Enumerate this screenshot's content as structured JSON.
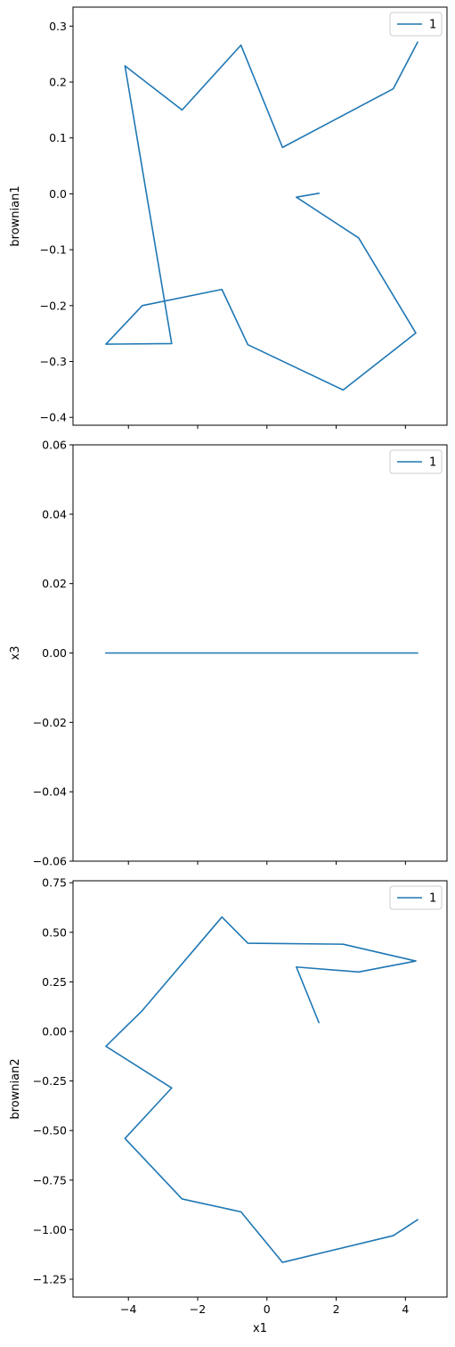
{
  "chart_data": [
    {
      "type": "line",
      "ylabel": "brownian1",
      "xlabel": "",
      "xlim": [
        -5.6,
        5.2
      ],
      "ylim": [
        -0.414,
        0.334
      ],
      "yticks": [
        -0.4,
        -0.3,
        -0.2,
        -0.1,
        0.0,
        0.1,
        0.2,
        0.3
      ],
      "ytick_labels": [
        "−0.4",
        "−0.3",
        "−0.2",
        "−0.1",
        "0.0",
        "0.1",
        "0.2",
        "0.3"
      ],
      "xticks": [
        -4,
        -2,
        0,
        2,
        4
      ],
      "xtick_labels": [],
      "legend_position": "upper-right",
      "series": [
        {
          "name": "1",
          "color": "#1f77b4",
          "x": [
            1.5,
            0.85,
            2.65,
            4.3,
            2.2,
            -0.55,
            -1.3,
            -3.6,
            -4.65,
            -2.75,
            -4.1,
            -2.45,
            -0.75,
            0.45,
            3.65,
            4.35
          ],
          "y": [
            0.001,
            -0.006,
            -0.079,
            -0.249,
            -0.351,
            -0.27,
            -0.171,
            -0.2,
            -0.269,
            -0.268,
            0.229,
            0.15,
            0.266,
            0.083,
            0.188,
            0.271
          ]
        }
      ]
    },
    {
      "type": "line",
      "ylabel": "x3",
      "xlabel": "",
      "xlim": [
        -5.6,
        5.2
      ],
      "ylim": [
        -0.06,
        0.06
      ],
      "yticks": [
        -0.06,
        -0.04,
        -0.02,
        0.0,
        0.02,
        0.04,
        0.06
      ],
      "ytick_labels": [
        "−0.06",
        "−0.04",
        "−0.02",
        "0.00",
        "0.02",
        "0.04",
        "0.06"
      ],
      "xticks": [
        -4,
        -2,
        0,
        2,
        4
      ],
      "xtick_labels": [],
      "legend_position": "upper-right",
      "series": [
        {
          "name": "1",
          "color": "#1f77b4",
          "x": [
            -4.65,
            4.35
          ],
          "y": [
            0.0,
            0.0
          ]
        }
      ]
    },
    {
      "type": "line",
      "ylabel": "brownian2",
      "xlabel": "x1",
      "xlim": [
        -5.6,
        5.2
      ],
      "ylim": [
        -1.34,
        0.76
      ],
      "yticks": [
        -1.25,
        -1.0,
        -0.75,
        -0.5,
        -0.25,
        0.0,
        0.25,
        0.5,
        0.75
      ],
      "ytick_labels": [
        "−1.25",
        "−1.00",
        "−0.75",
        "−0.50",
        "−0.25",
        "0.00",
        "0.25",
        "0.50",
        "0.75"
      ],
      "xticks": [
        -4,
        -2,
        0,
        2,
        4
      ],
      "xtick_labels": [
        "−4",
        "−2",
        "0",
        "2",
        "4"
      ],
      "legend_position": "upper-right",
      "series": [
        {
          "name": "1",
          "color": "#1f77b4",
          "x": [
            1.5,
            0.85,
            2.65,
            4.3,
            2.2,
            -0.55,
            -1.3,
            -3.6,
            -4.65,
            -2.75,
            -4.1,
            -2.45,
            -0.75,
            0.45,
            3.65,
            4.35
          ],
          "y": [
            0.045,
            0.325,
            0.3,
            0.355,
            0.44,
            0.445,
            0.577,
            0.105,
            -0.075,
            -0.285,
            -0.54,
            -0.845,
            -0.91,
            -1.165,
            -1.03,
            -0.95
          ]
        }
      ]
    }
  ]
}
